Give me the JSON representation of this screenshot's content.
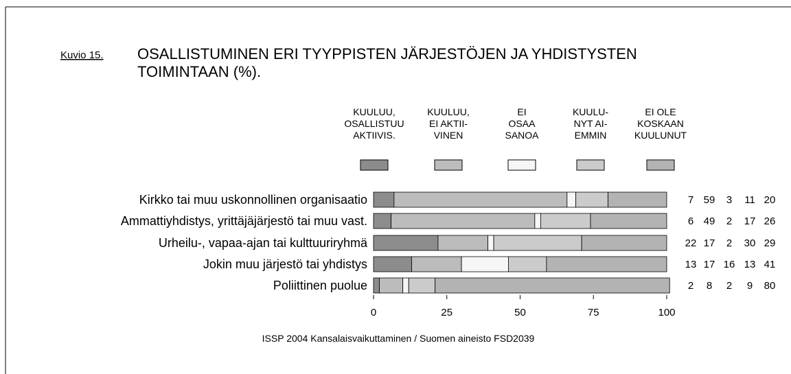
{
  "chart_data": {
    "type": "stacked_barh",
    "figure_label": "Kuvio 15.",
    "title": "OSALLISTUMINEN ERI TYYPPISTEN JÄRJESTÖJEN JA YHDISTYSTEN\nTOIMINTAAN (%).",
    "categories": [
      "Kirkko tai muu uskonnollinen organisaatio",
      "Ammattiyhdistys, yrittäjäjärjestö tai muu vast.",
      "Urheilu-, vapaa-ajan tai kulttuuriryhmä",
      "Jokin muu järjestö tai yhdistys",
      "Poliittinen puolue"
    ],
    "series": [
      {
        "name": "KUULUU,\nOSALLISTUU\nAKTIIVIS.",
        "color": "#8c8c8c",
        "values": [
          7,
          6,
          22,
          13,
          2
        ]
      },
      {
        "name": "KUULUU,\nEI AKTII-\nVINEN",
        "color": "#bcbcbc",
        "values": [
          59,
          49,
          17,
          17,
          8
        ]
      },
      {
        "name": "EI\nOSAA\nSANOA",
        "color": "#f6f6f6",
        "values": [
          3,
          2,
          2,
          16,
          2
        ]
      },
      {
        "name": "KUULU-\nNYT AI-\nEMMIN",
        "color": "#cbcbcb",
        "values": [
          11,
          17,
          30,
          13,
          9
        ]
      },
      {
        "name": "EI OLE\nKOSKAAN\nKUULUNUT",
        "color": "#b3b3b3",
        "values": [
          20,
          26,
          29,
          41,
          80
        ]
      }
    ],
    "xlim": [
      0,
      100
    ],
    "xticks": [
      0,
      25,
      50,
      75,
      100
    ],
    "note": "ISSP 2004  Kansalaisvaikuttaminen / Suomen aineisto  FSD2039"
  }
}
